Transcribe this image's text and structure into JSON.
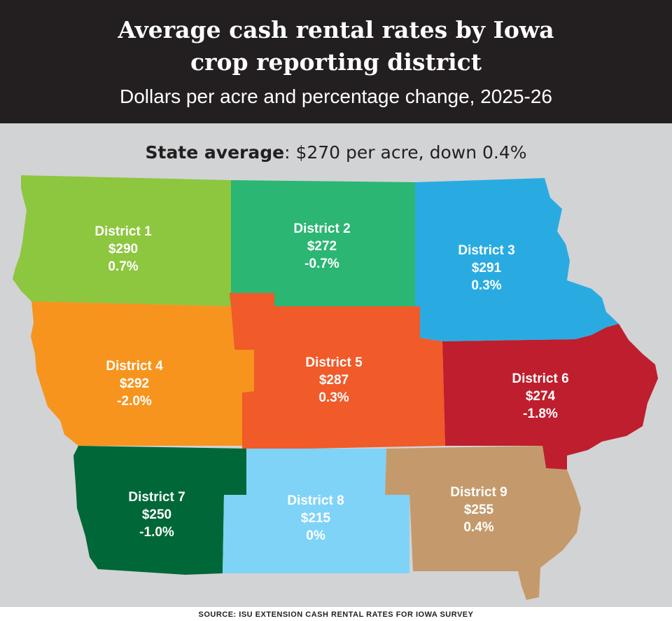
{
  "header": {
    "title_line1": "Average cash rental rates by Iowa",
    "title_line2": "crop reporting district",
    "subtitle": "Dollars per acre and percentage change, 2025-26"
  },
  "state_average": {
    "label": "State average",
    "value": ": $270 per acre, down 0.4%"
  },
  "districts": [
    {
      "name": "District 1",
      "rate": "$290",
      "change": "0.7%",
      "color": "#8dc63f"
    },
    {
      "name": "District 2",
      "rate": "$272",
      "change": "-0.7%",
      "color": "#2bb673"
    },
    {
      "name": "District 3",
      "rate": "$291",
      "change": "0.3%",
      "color": "#29abe2"
    },
    {
      "name": "District 4",
      "rate": "$292",
      "change": "-2.0%",
      "color": "#f7941d"
    },
    {
      "name": "District 5",
      "rate": "$287",
      "change": "0.3%",
      "color": "#f15a29"
    },
    {
      "name": "District 6",
      "rate": "$274",
      "change": "-1.8%",
      "color": "#be1e2d"
    },
    {
      "name": "District 7",
      "rate": "$250",
      "change": "-1.0%",
      "color": "#006838"
    },
    {
      "name": "District 8",
      "rate": "$215",
      "change": "0%",
      "color": "#7fd3f7"
    },
    {
      "name": "District 9",
      "rate": "$255",
      "change": "0.4%",
      "color": "#c49a6c"
    }
  ],
  "source": "SOURCE: ISU EXTENSION CASH RENTAL RATES FOR IOWA SURVEY"
}
